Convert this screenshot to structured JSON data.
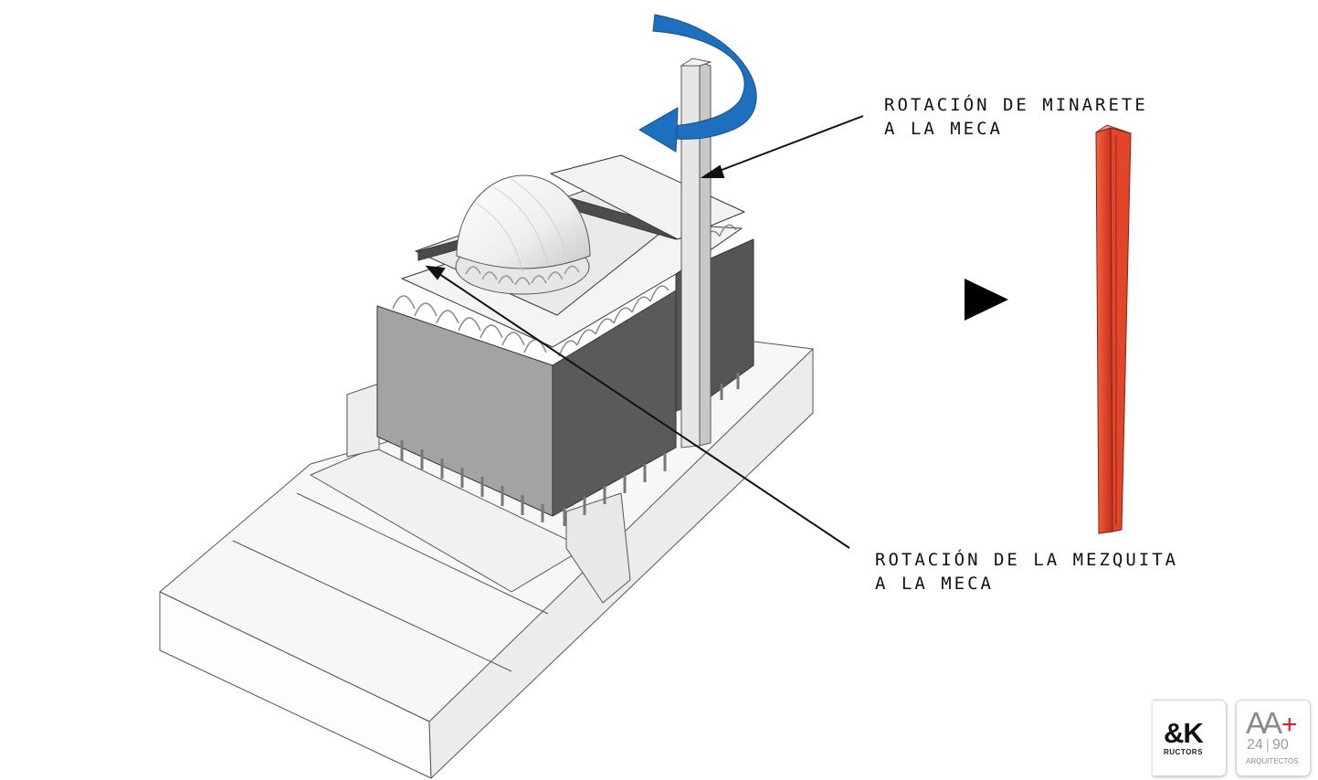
{
  "annotations": {
    "minaret_line1": "ROTACIÓN DE MINARETE",
    "minaret_line2": "A LA MECA",
    "mosque_line1": "ROTACIÓN DE LA MEZQUITA",
    "mosque_line2": "A LA MECA"
  },
  "colors": {
    "rotation_arrow": "#1f6fbf",
    "minaret_highlight": "#e2452a",
    "pointer": "#111111",
    "logo_red": "#d2202f"
  },
  "logos": {
    "constructors": {
      "main": "&K",
      "sub": "RUCTORS"
    },
    "architects": {
      "mark": "AA",
      "plus": "+",
      "left_num": "24",
      "right_num": "90",
      "sub": "ARQUITECTOS"
    }
  },
  "icons": {
    "rotation": "curved-rotation-arrow-icon",
    "next": "play-triangle-icon"
  }
}
